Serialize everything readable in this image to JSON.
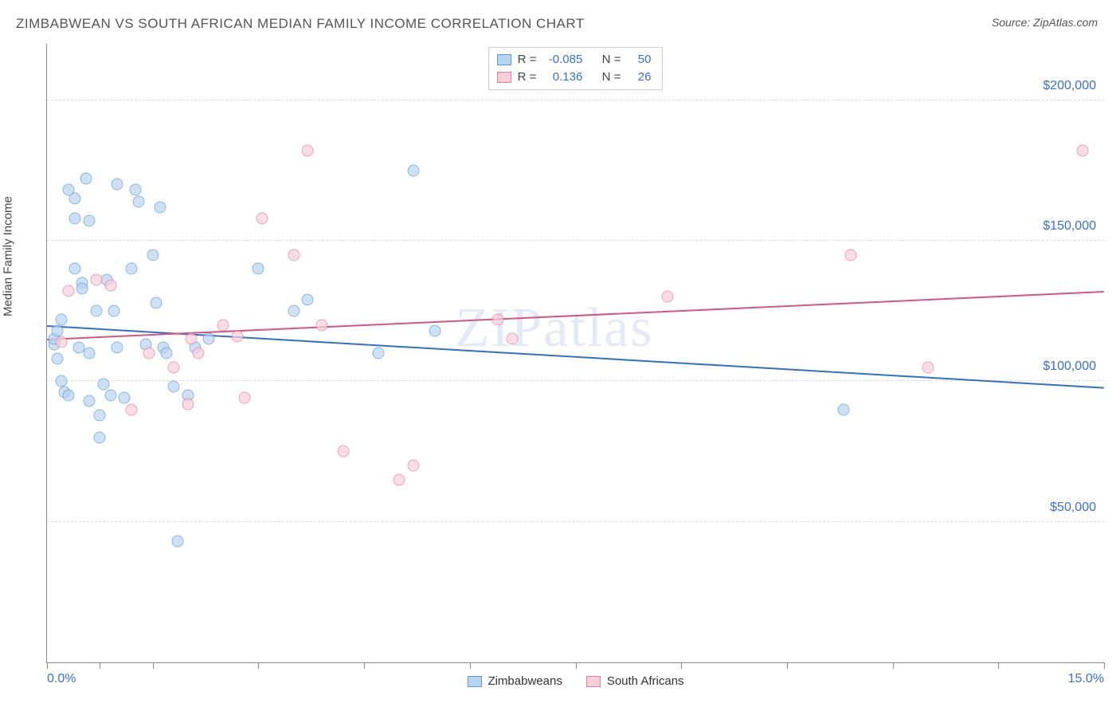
{
  "header": {
    "title": "ZIMBABWEAN VS SOUTH AFRICAN MEDIAN FAMILY INCOME CORRELATION CHART",
    "source": "Source: ZipAtlas.com"
  },
  "chart": {
    "type": "scatter",
    "ylabel": "Median Family Income",
    "xlim": [
      0,
      15
    ],
    "ylim": [
      0,
      220000
    ],
    "xtick_positions_pct": [
      0,
      5,
      10,
      20,
      30,
      40,
      50,
      60,
      70,
      80,
      90,
      100
    ],
    "xtick_labels": {
      "start": "0.0%",
      "end": "15.0%"
    },
    "ytick_values": [
      50000,
      100000,
      150000,
      200000
    ],
    "ytick_labels": [
      "$50,000",
      "$100,000",
      "$150,000",
      "$200,000"
    ],
    "grid_color": "#dddddd",
    "axis_color": "#888888",
    "background_color": "#ffffff",
    "label_color": "#3a6fd8",
    "marker_radius": 7.5,
    "marker_opacity": 0.7,
    "series": [
      {
        "name": "Zimbabweans",
        "fill": "#b8d4f0",
        "stroke": "#5a9bd5",
        "r_value": "-0.085",
        "n_value": "50",
        "trend": {
          "y_at_x0": 120000,
          "y_at_xmax": 98000,
          "color": "#2e6fd0",
          "width": 2
        },
        "points": [
          [
            0.1,
            113000
          ],
          [
            0.1,
            115000
          ],
          [
            0.15,
            108000
          ],
          [
            0.15,
            118000
          ],
          [
            0.2,
            122000
          ],
          [
            0.2,
            100000
          ],
          [
            0.25,
            96000
          ],
          [
            0.3,
            95000
          ],
          [
            0.3,
            168000
          ],
          [
            0.4,
            165000
          ],
          [
            0.4,
            158000
          ],
          [
            0.4,
            140000
          ],
          [
            0.45,
            112000
          ],
          [
            0.5,
            135000
          ],
          [
            0.5,
            133000
          ],
          [
            0.55,
            172000
          ],
          [
            0.6,
            93000
          ],
          [
            0.6,
            110000
          ],
          [
            0.6,
            157000
          ],
          [
            0.7,
            125000
          ],
          [
            0.75,
            80000
          ],
          [
            0.75,
            88000
          ],
          [
            0.8,
            99000
          ],
          [
            0.85,
            136000
          ],
          [
            0.9,
            95000
          ],
          [
            0.95,
            125000
          ],
          [
            1.0,
            170000
          ],
          [
            1.0,
            112000
          ],
          [
            1.1,
            94000
          ],
          [
            1.2,
            140000
          ],
          [
            1.25,
            168000
          ],
          [
            1.3,
            164000
          ],
          [
            1.4,
            113000
          ],
          [
            1.5,
            145000
          ],
          [
            1.55,
            128000
          ],
          [
            1.6,
            162000
          ],
          [
            1.65,
            112000
          ],
          [
            1.7,
            110000
          ],
          [
            1.8,
            98000
          ],
          [
            1.85,
            43000
          ],
          [
            2.0,
            95000
          ],
          [
            2.1,
            112000
          ],
          [
            2.3,
            115000
          ],
          [
            3.0,
            140000
          ],
          [
            3.5,
            125000
          ],
          [
            3.7,
            129000
          ],
          [
            4.7,
            110000
          ],
          [
            5.2,
            175000
          ],
          [
            5.5,
            118000
          ],
          [
            11.3,
            90000
          ]
        ]
      },
      {
        "name": "South Africans",
        "fill": "#f8d0da",
        "stroke": "#e57ba0",
        "r_value": "0.136",
        "n_value": "26",
        "trend": {
          "y_at_x0": 115000,
          "y_at_xmax": 132000,
          "color": "#d9547e",
          "width": 2
        },
        "points": [
          [
            0.2,
            114000
          ],
          [
            0.3,
            132000
          ],
          [
            0.7,
            136000
          ],
          [
            0.9,
            134000
          ],
          [
            1.2,
            90000
          ],
          [
            1.45,
            110000
          ],
          [
            1.8,
            105000
          ],
          [
            2.0,
            92000
          ],
          [
            2.05,
            115000
          ],
          [
            2.15,
            110000
          ],
          [
            2.5,
            120000
          ],
          [
            2.7,
            116000
          ],
          [
            2.8,
            94000
          ],
          [
            3.05,
            158000
          ],
          [
            3.5,
            145000
          ],
          [
            3.7,
            182000
          ],
          [
            3.9,
            120000
          ],
          [
            4.2,
            75000
          ],
          [
            5.0,
            65000
          ],
          [
            5.2,
            70000
          ],
          [
            6.4,
            122000
          ],
          [
            6.6,
            115000
          ],
          [
            8.8,
            130000
          ],
          [
            11.4,
            145000
          ],
          [
            12.5,
            105000
          ],
          [
            14.7,
            182000
          ]
        ]
      }
    ],
    "watermark": "ZIPatlas",
    "stat_legend_labels": {
      "r": "R =",
      "n": "N ="
    },
    "bottom_legend_labels": [
      "Zimbabweans",
      "South Africans"
    ]
  }
}
